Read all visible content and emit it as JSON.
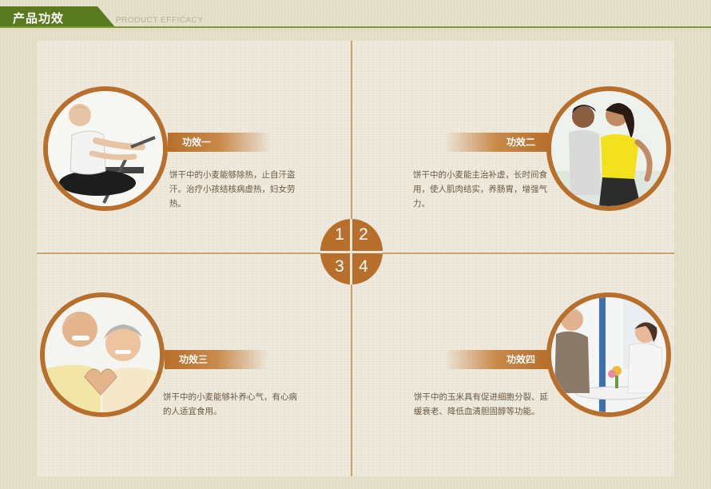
{
  "header": {
    "title": "产品功效",
    "subtitle": "PRODUCT EFFICACY"
  },
  "badge_numbers": [
    "1",
    "2",
    "3",
    "4"
  ],
  "effects": [
    {
      "label": "功效一",
      "description": "饼干中的小麦能够除热，止自汗盗汗。治疗小孩结核病虚热，妇女劳热。"
    },
    {
      "label": "功效二",
      "description": "饼干中的小麦能主治补虚，长时间食用，使人肌肉结实，养肠胃，增强气力。"
    },
    {
      "label": "功效三",
      "description": "饼干中的小麦能够补养心气，有心病的人适宜食用。"
    },
    {
      "label": "功效四",
      "description": "饼干中的玉米具有促进细胞分裂、延缓衰老、降低血清胆固醇等功能。"
    }
  ],
  "colors": {
    "accent": "#b86f2b",
    "header_green": "#5a7a1f",
    "text": "#6b5a44"
  }
}
